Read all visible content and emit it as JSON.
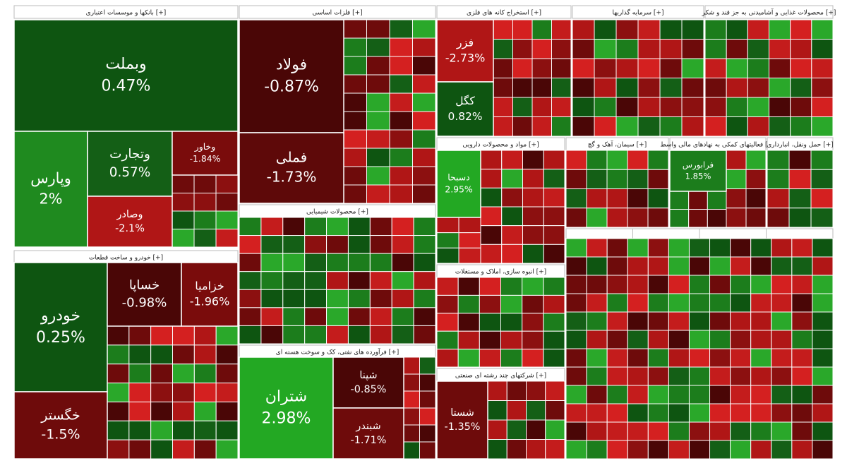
{
  "chart_data": {
    "type": "treemap",
    "groups": [
      {
        "title": "بانکها و موسسات اعتباری [+]",
        "tiles": [
          {
            "label": "وبملت",
            "value": 0.47,
            "value_label": "0.47%",
            "color": "#0e5511"
          },
          {
            "label": "وپارس",
            "value": 2,
            "value_label": "2%",
            "color": "#1f8a1f"
          },
          {
            "label": "وتجارت",
            "value": 0.57,
            "value_label": "0.57%",
            "color": "#145f16"
          },
          {
            "label": "وصادر",
            "value": -2.1,
            "value_label": "-2.1%",
            "color": "#b01616"
          },
          {
            "label": "وخاور",
            "value": -1.84,
            "value_label": "-1.84%",
            "color": "#7a0c0c"
          }
        ]
      },
      {
        "title": "خودرو و ساخت قطعات [+]",
        "tiles": [
          {
            "label": "خودرو",
            "value": 0.25,
            "value_label": "0.25%",
            "color": "#0e5511"
          },
          {
            "label": "خگستر",
            "value": -1.5,
            "value_label": "-1.5%",
            "color": "#6e0b0b"
          },
          {
            "label": "خساپا",
            "value": -0.98,
            "value_label": "-0.98%",
            "color": "#4a0606"
          },
          {
            "label": "خزامیا",
            "value": -1.96,
            "value_label": "-1.96%",
            "color": "#7a0c0c"
          }
        ]
      },
      {
        "title": "فلزات اساسی [+]",
        "tiles": [
          {
            "label": "فولاد",
            "value": -0.87,
            "value_label": "-0.87%",
            "color": "#4a0606"
          },
          {
            "label": "فملی",
            "value": -1.73,
            "value_label": "-1.73%",
            "color": "#5e0909"
          }
        ]
      },
      {
        "title": "محصولات شیمیایی [+]",
        "tiles": []
      },
      {
        "title": "فرآورده های نفتی، کک و سوخت هسته ای [+]",
        "tiles": [
          {
            "label": "شتران",
            "value": 2.98,
            "value_label": "2.98%",
            "color": "#23a823"
          },
          {
            "label": "شپنا",
            "value": -0.85,
            "value_label": "-0.85%",
            "color": "#4a0606"
          },
          {
            "label": "شبندر",
            "value": -1.71,
            "value_label": "-1.71%",
            "color": "#6e0b0b"
          }
        ]
      },
      {
        "title": "استخراج کانه های فلزی [+]",
        "tiles": [
          {
            "label": "فزر",
            "value": -2.73,
            "value_label": "-2.73%",
            "color": "#b01616"
          },
          {
            "label": "کگل",
            "value": 0.82,
            "value_label": "0.82%",
            "color": "#0e5511"
          }
        ]
      },
      {
        "title": "سرمایه گذاریها [+]",
        "tiles": []
      },
      {
        "title": "محصولات غذایی و آشامیدنی به جز قند و شکر [+]",
        "tiles": []
      },
      {
        "title": "مواد و محصولات دارویی [+]",
        "tiles": [
          {
            "label": "دسبحا",
            "value": 2.95,
            "value_label": "2.95%",
            "color": "#23a823"
          }
        ]
      },
      {
        "title": "سیمان، آهک و گچ [+]",
        "tiles": []
      },
      {
        "title": "فعالیتهای کمکی به نهادهای مالی واسط [+]",
        "tiles": [
          {
            "label": "فرابورس",
            "value": 1.85,
            "value_label": "1.85%",
            "color": "#1c7d1c"
          }
        ]
      },
      {
        "title": "حمل ونقل، انبارداری [+]",
        "tiles": []
      },
      {
        "title": "انبوه سازی، املاک و مستغلات [+]",
        "tiles": []
      },
      {
        "title": "شرکتهای چند رشته ای صنعتی [+]",
        "tiles": [
          {
            "label": "شستا",
            "value": -1.35,
            "value_label": "-1.35%",
            "color": "#6e0b0b"
          }
        ]
      }
    ]
  }
}
